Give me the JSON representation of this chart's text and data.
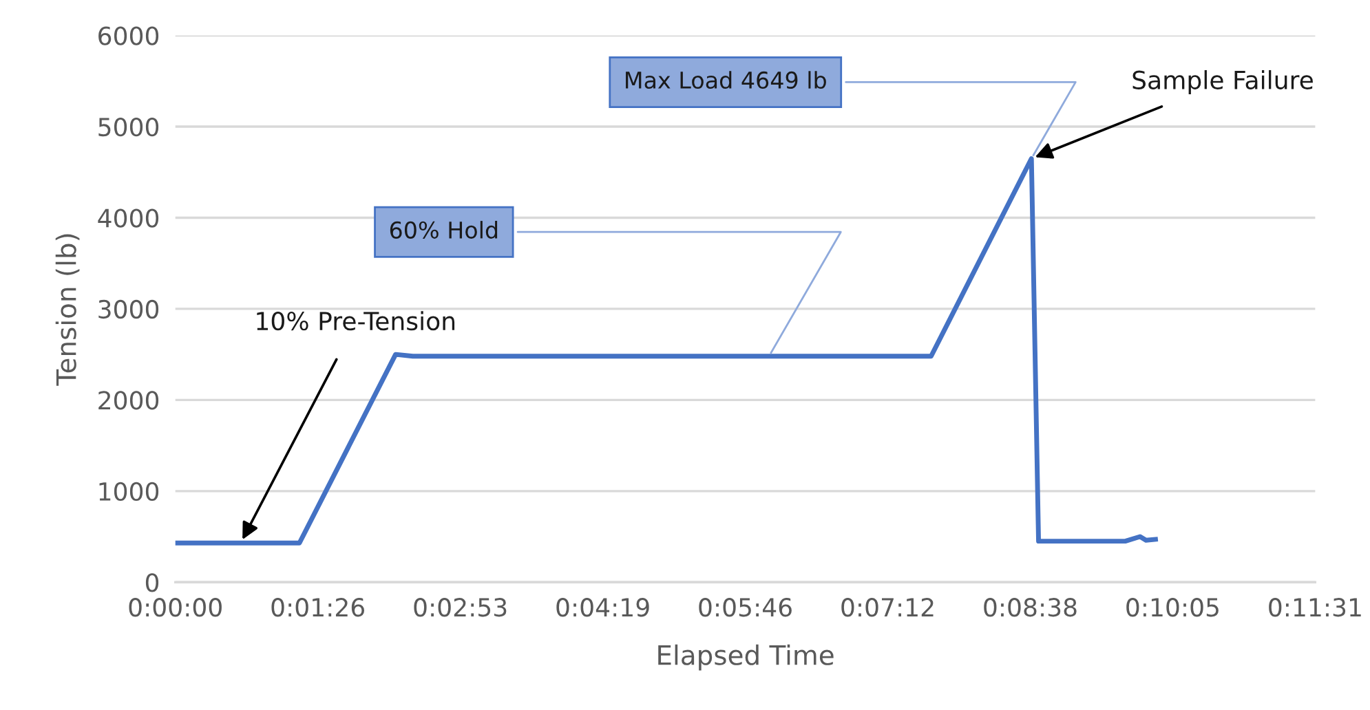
{
  "chart_data": {
    "type": "line",
    "xlabel": "Elapsed Time",
    "ylabel": "Tension (lb)",
    "series": [
      {
        "color": "#4472c4",
        "x": [
          0,
          0.0209,
          0.0371,
          0.04,
          0.1273,
          0.1442,
          0.1454,
          0.16,
          0.1625,
          0.1635,
          0.1651
        ],
        "values": [
          430,
          430,
          2500,
          2480,
          2480,
          4649,
          450,
          450,
          500,
          460,
          470
        ]
      }
    ],
    "xlim": [
      0,
      0.192
    ],
    "ylim": [
      0,
      6000
    ],
    "xticks": [
      {
        "value": 0,
        "label": "0:00:00"
      },
      {
        "value": 0.024,
        "label": "0:01:26"
      },
      {
        "value": 0.048,
        "label": "0:02:53"
      },
      {
        "value": 0.072,
        "label": "0:04:19"
      },
      {
        "value": 0.096,
        "label": "0:05:46"
      },
      {
        "value": 0.12,
        "label": "0:07:12"
      },
      {
        "value": 0.144,
        "label": "0:08:38"
      },
      {
        "value": 0.168,
        "label": "0:10:05"
      },
      {
        "value": 0.192,
        "label": "0:11:31"
      }
    ],
    "yticks": [
      0,
      1000,
      2000,
      3000,
      4000,
      5000,
      6000
    ],
    "grid": "y",
    "marker": "none",
    "line_style": "solid",
    "legend": false,
    "annotations": [
      {
        "text": "Max Load 4649 lb",
        "x": 0.1442,
        "y": 4649
      },
      {
        "text": "60% Hold",
        "x": 0.1,
        "y": 2480
      },
      {
        "text": "10% Pre-Tension",
        "x": 0.011,
        "y": 430
      },
      {
        "text": "Sample Failure",
        "x": 0.1442,
        "y": 4649
      }
    ]
  }
}
